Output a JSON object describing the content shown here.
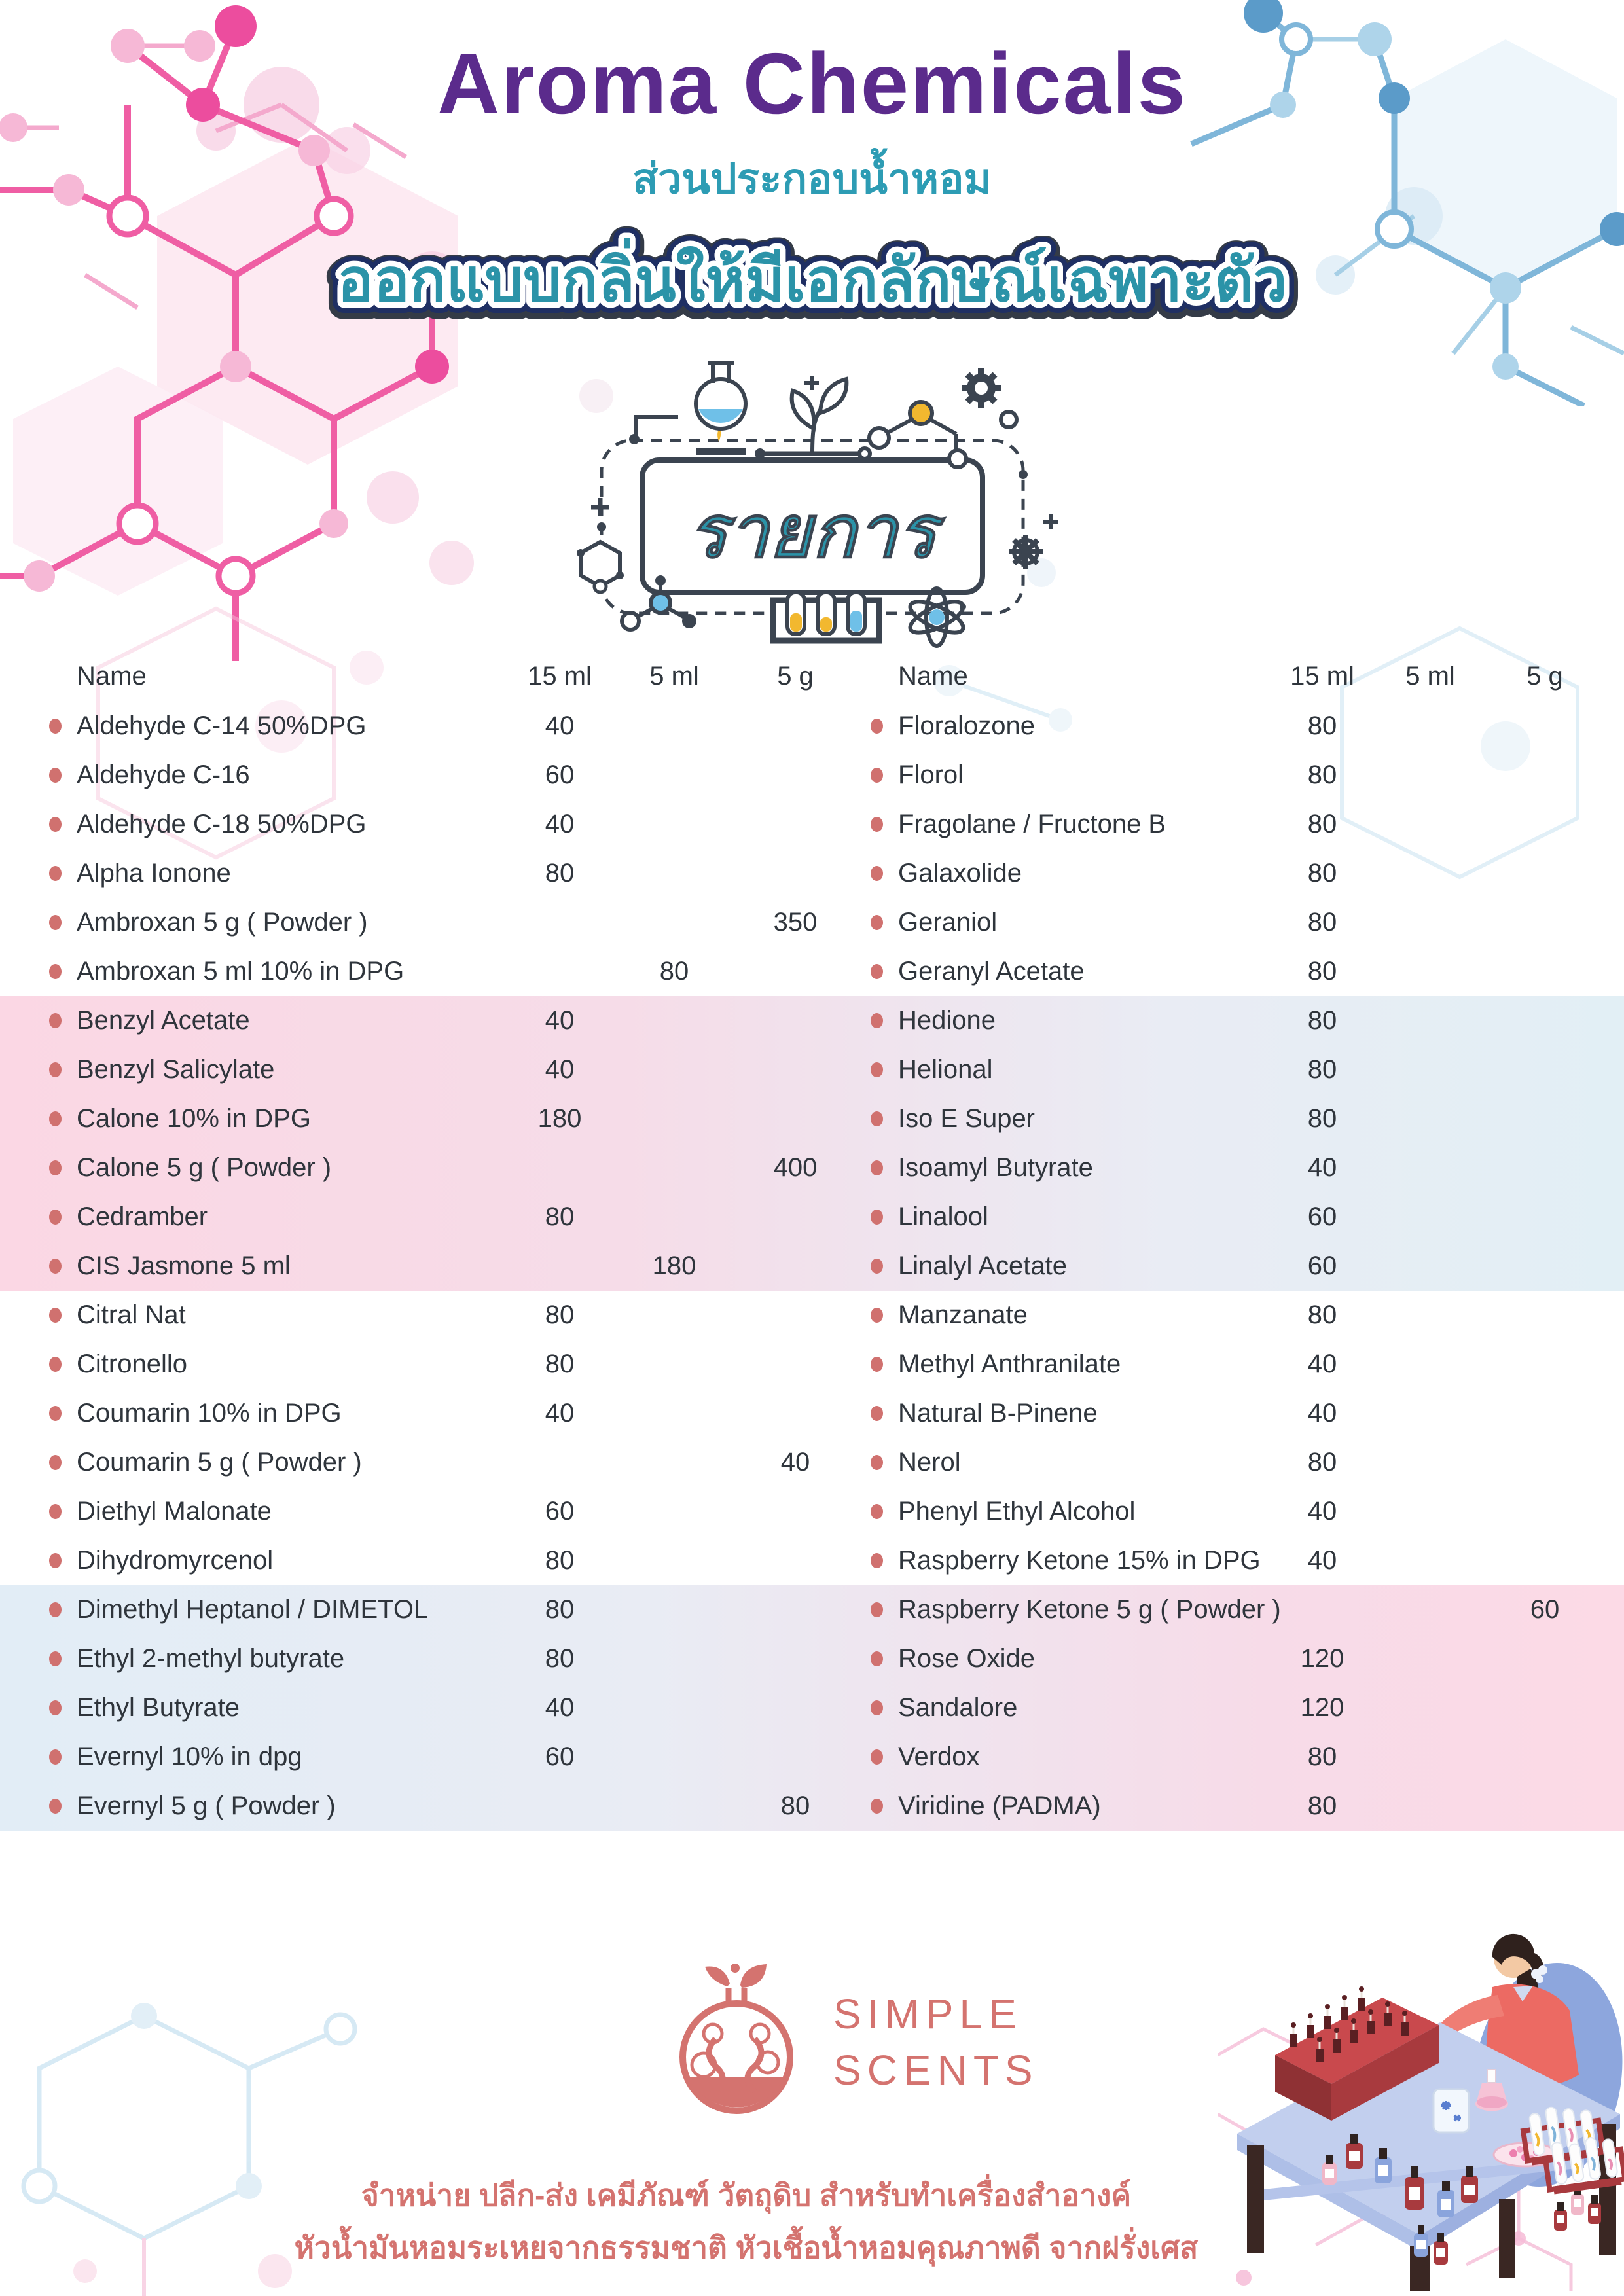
{
  "header": {
    "title": "Aroma Chemicals",
    "subtitle_thai": "ส่วนประกอบน้ำหอม",
    "banner_thai": "ออกแบบกลิ่นให้มีเอกลักษณ์เฉพาะตัว",
    "list_label_thai": "รายการ"
  },
  "table": {
    "columns": [
      "Name",
      "15 ml",
      "5 ml",
      "5 g"
    ],
    "left_items": [
      {
        "name": "Aldehyde C-14 50%DPG",
        "ml15": "40",
        "ml5": "",
        "g5": ""
      },
      {
        "name": "Aldehyde C-16",
        "ml15": "60",
        "ml5": "",
        "g5": ""
      },
      {
        "name": "Aldehyde C-18 50%DPG",
        "ml15": "40",
        "ml5": "",
        "g5": ""
      },
      {
        "name": "Alpha Ionone",
        "ml15": "80",
        "ml5": "",
        "g5": ""
      },
      {
        "name": "Ambroxan 5 g ( Powder )",
        "ml15": "",
        "ml5": "",
        "g5": "350"
      },
      {
        "name": "Ambroxan 5 ml 10% in DPG",
        "ml15": "",
        "ml5": "80",
        "g5": ""
      },
      {
        "name": "Benzyl Acetate",
        "ml15": "40",
        "ml5": "",
        "g5": ""
      },
      {
        "name": "Benzyl Salicylate",
        "ml15": "40",
        "ml5": "",
        "g5": ""
      },
      {
        "name": "Calone 10% in DPG",
        "ml15": "180",
        "ml5": "",
        "g5": ""
      },
      {
        "name": "Calone 5 g ( Powder )",
        "ml15": "",
        "ml5": "",
        "g5": "400"
      },
      {
        "name": "Cedramber",
        "ml15": "80",
        "ml5": "",
        "g5": ""
      },
      {
        "name": "CIS Jasmone 5 ml",
        "ml15": "",
        "ml5": "180",
        "g5": ""
      },
      {
        "name": "Citral Nat",
        "ml15": "80",
        "ml5": "",
        "g5": ""
      },
      {
        "name": "Citronello",
        "ml15": "80",
        "ml5": "",
        "g5": ""
      },
      {
        "name": "Coumarin 10% in DPG",
        "ml15": "40",
        "ml5": "",
        "g5": ""
      },
      {
        "name": "Coumarin 5 g ( Powder )",
        "ml15": "",
        "ml5": "",
        "g5": "40"
      },
      {
        "name": "Diethyl Malonate",
        "ml15": "60",
        "ml5": "",
        "g5": ""
      },
      {
        "name": "Dihydromyrcenol",
        "ml15": "80",
        "ml5": "",
        "g5": ""
      },
      {
        "name": "Dimethyl Heptanol / DIMETOL",
        "ml15": "80",
        "ml5": "",
        "g5": ""
      },
      {
        "name": "Ethyl 2-methyl butyrate",
        "ml15": "80",
        "ml5": "",
        "g5": ""
      },
      {
        "name": "Ethyl Butyrate",
        "ml15": "40",
        "ml5": "",
        "g5": ""
      },
      {
        "name": "Evernyl 10% in dpg",
        "ml15": "60",
        "ml5": "",
        "g5": ""
      },
      {
        "name": "Evernyl 5 g ( Powder )",
        "ml15": "",
        "ml5": "",
        "g5": "80"
      }
    ],
    "right_items": [
      {
        "name": "Floralozone",
        "ml15": "80",
        "ml5": "",
        "g5": ""
      },
      {
        "name": "Florol",
        "ml15": "80",
        "ml5": "",
        "g5": ""
      },
      {
        "name": "Fragolane / Fructone B",
        "ml15": "80",
        "ml5": "",
        "g5": ""
      },
      {
        "name": "Galaxolide",
        "ml15": "80",
        "ml5": "",
        "g5": ""
      },
      {
        "name": "Geraniol",
        "ml15": "80",
        "ml5": "",
        "g5": ""
      },
      {
        "name": "Geranyl Acetate",
        "ml15": "80",
        "ml5": "",
        "g5": ""
      },
      {
        "name": "Hedione",
        "ml15": "80",
        "ml5": "",
        "g5": ""
      },
      {
        "name": "Helional",
        "ml15": "80",
        "ml5": "",
        "g5": ""
      },
      {
        "name": "Iso E Super",
        "ml15": "80",
        "ml5": "",
        "g5": ""
      },
      {
        "name": "Isoamyl Butyrate",
        "ml15": "40",
        "ml5": "",
        "g5": ""
      },
      {
        "name": "Linalool",
        "ml15": "60",
        "ml5": "",
        "g5": ""
      },
      {
        "name": "Linalyl Acetate",
        "ml15": "60",
        "ml5": "",
        "g5": ""
      },
      {
        "name": "Manzanate",
        "ml15": "80",
        "ml5": "",
        "g5": ""
      },
      {
        "name": "Methyl Anthranilate",
        "ml15": "40",
        "ml5": "",
        "g5": ""
      },
      {
        "name": "Natural B-Pinene",
        "ml15": "40",
        "ml5": "",
        "g5": ""
      },
      {
        "name": "Nerol",
        "ml15": "80",
        "ml5": "",
        "g5": ""
      },
      {
        "name": "Phenyl Ethyl Alcohol",
        "ml15": "40",
        "ml5": "",
        "g5": ""
      },
      {
        "name": "Raspberry Ketone 15% in DPG",
        "ml15": "40",
        "ml5": "",
        "g5": ""
      },
      {
        "name": "Raspberry Ketone 5 g ( Powder )",
        "ml15": "",
        "ml5": "",
        "g5": "60"
      },
      {
        "name": "Rose Oxide",
        "ml15": "120",
        "ml5": "",
        "g5": ""
      },
      {
        "name": "Sandalore",
        "ml15": "120",
        "ml5": "",
        "g5": ""
      },
      {
        "name": "Verdox",
        "ml15": "80",
        "ml5": "",
        "g5": ""
      },
      {
        "name": "Viridine (PADMA)",
        "ml15": "80",
        "ml5": "",
        "g5": ""
      }
    ]
  },
  "footer": {
    "logo_line1": "SIMPLE",
    "logo_line2": "SCENTS",
    "thai_line1": "จำหน่าย ปลีก-ส่ง เคมีภัณฑ์ วัตถุดิบ สำหรับทำเครื่องสำอางค์",
    "thai_line2": "หัวน้ำมันหอมระเหยจากธรรมชาติ หัวเชื้อน้ำหอมคุณภาพดี จากฝรั่งเศส"
  },
  "colors": {
    "title_purple": "#5b2b8c",
    "subtitle_teal": "#2d9cb4",
    "banner_teal": "#2b93a8",
    "banner_outline_navy": "#1f2f63",
    "banner_outline_dark": "#343b47",
    "text_dark": "#2f353c",
    "bullet_salmon": "#d0716f",
    "band_pink": "#fbd7e4",
    "band_blue": "#e2edf6",
    "footer_salmon": "#d4736f",
    "pink_accent": "#ee5fa0",
    "blue_accent": "#7fb6d9",
    "icon_dark": "#3b4450",
    "icon_yellow": "#f2b82f",
    "icon_blue": "#6fc0e8"
  }
}
